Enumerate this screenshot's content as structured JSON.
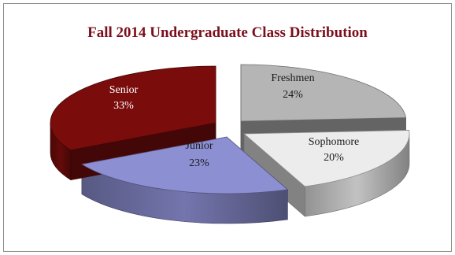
{
  "chart_data": {
    "type": "pie",
    "title": "Fall 2014 Undergraduate Class Distribution",
    "three_d": true,
    "exploded": true,
    "slices": [
      {
        "label": "Freshmen",
        "value": 24,
        "value_label": "24%",
        "color": "#b5b5b5"
      },
      {
        "label": "Sophomore",
        "value": 20,
        "value_label": "20%",
        "color": "#ececec"
      },
      {
        "label": "Junior",
        "value": 23,
        "value_label": "23%",
        "color": "#8d8fd3"
      },
      {
        "label": "Senior",
        "value": 33,
        "value_label": "33%",
        "color": "#7a0c0c"
      }
    ],
    "title_color": "#7b0f1c"
  }
}
